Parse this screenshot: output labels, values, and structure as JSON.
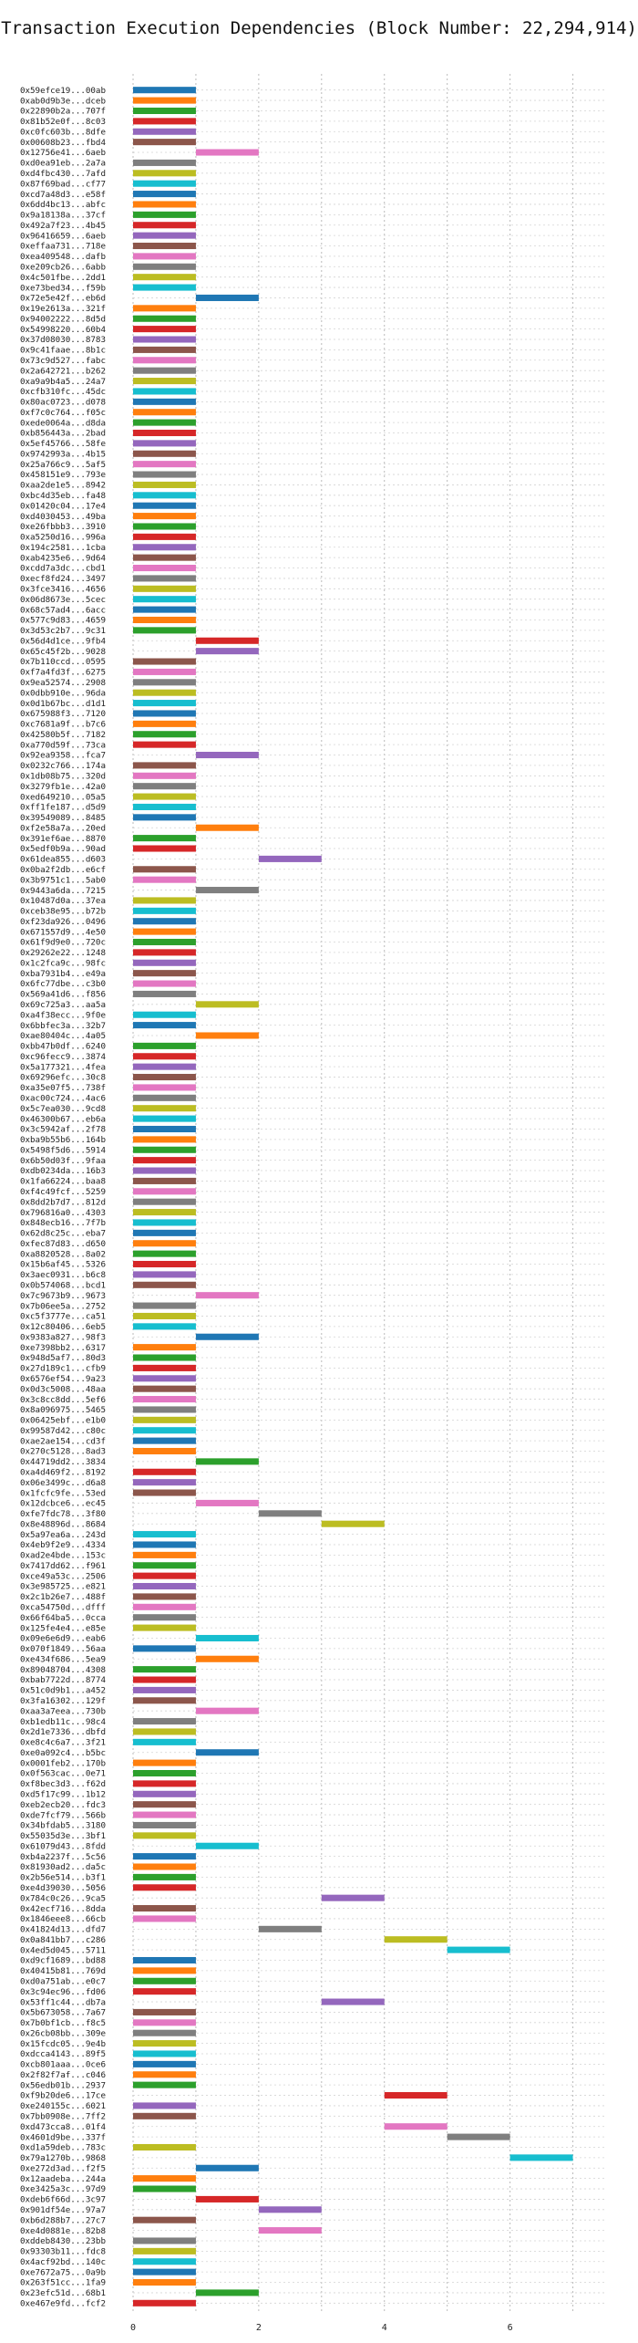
{
  "chart_data": {
    "type": "bar",
    "orientation": "horizontal-gantt",
    "title": "Transaction Execution Dependencies (Block Number: 22,294,914)",
    "xlabel": "",
    "ylabel": "",
    "xlim": [
      0,
      7.5
    ],
    "xticks": [
      0,
      2,
      4,
      6
    ],
    "grid": "vertical dotted",
    "legend": "none",
    "colors": [
      "#1f77b4",
      "#ff7f0e",
      "#2ca02c",
      "#d62728",
      "#9467bd",
      "#8c564b",
      "#e377c2",
      "#7f7f7f",
      "#bcbd22",
      "#17becf"
    ],
    "transactions": [
      {
        "tx": "0x59efce19...00ab",
        "start": 0,
        "end": 1
      },
      {
        "tx": "0xab0d9b3e...dceb",
        "start": 0,
        "end": 1
      },
      {
        "tx": "0x22890b2a...707f",
        "start": 0,
        "end": 1
      },
      {
        "tx": "0x81b52e0f...8c03",
        "start": 0,
        "end": 1
      },
      {
        "tx": "0xc0fc603b...8dfe",
        "start": 0,
        "end": 1
      },
      {
        "tx": "0x00608b23...fbd4",
        "start": 0,
        "end": 1
      },
      {
        "tx": "0x12756e41...6aeb",
        "start": 1,
        "end": 2
      },
      {
        "tx": "0xd0ea91eb...2a7a",
        "start": 0,
        "end": 1
      },
      {
        "tx": "0xd4fbc430...7afd",
        "start": 0,
        "end": 1
      },
      {
        "tx": "0x87f69bad...cf77",
        "start": 0,
        "end": 1
      },
      {
        "tx": "0xcd7a48d3...e58f",
        "start": 0,
        "end": 1
      },
      {
        "tx": "0x6dd4bc13...abfc",
        "start": 0,
        "end": 1
      },
      {
        "tx": "0x9a18138a...37cf",
        "start": 0,
        "end": 1
      },
      {
        "tx": "0x492a7f23...4b45",
        "start": 0,
        "end": 1
      },
      {
        "tx": "0x96416659...6aeb",
        "start": 0,
        "end": 1
      },
      {
        "tx": "0xeffaa731...718e",
        "start": 0,
        "end": 1
      },
      {
        "tx": "0xea409548...dafb",
        "start": 0,
        "end": 1
      },
      {
        "tx": "0xe209cb26...6abb",
        "start": 0,
        "end": 1
      },
      {
        "tx": "0x4c501fbe...2dd1",
        "start": 0,
        "end": 1
      },
      {
        "tx": "0xe73bed34...f59b",
        "start": 0,
        "end": 1
      },
      {
        "tx": "0x72e5e42f...eb6d",
        "start": 1,
        "end": 2
      },
      {
        "tx": "0x19e2613a...321f",
        "start": 0,
        "end": 1
      },
      {
        "tx": "0x94002222...8d5d",
        "start": 0,
        "end": 1
      },
      {
        "tx": "0x54998220...60b4",
        "start": 0,
        "end": 1
      },
      {
        "tx": "0x37d08030...8783",
        "start": 0,
        "end": 1
      },
      {
        "tx": "0x9c41faae...8b1c",
        "start": 0,
        "end": 1
      },
      {
        "tx": "0x73c9d527...fabc",
        "start": 0,
        "end": 1
      },
      {
        "tx": "0x2a642721...b262",
        "start": 0,
        "end": 1
      },
      {
        "tx": "0xa9a9b4a5...24a7",
        "start": 0,
        "end": 1
      },
      {
        "tx": "0xcfb310fc...45dc",
        "start": 0,
        "end": 1
      },
      {
        "tx": "0x80ac0723...d078",
        "start": 0,
        "end": 1
      },
      {
        "tx": "0xf7c0c764...f05c",
        "start": 0,
        "end": 1
      },
      {
        "tx": "0xede0064a...d8da",
        "start": 0,
        "end": 1
      },
      {
        "tx": "0xb856443a...2bad",
        "start": 0,
        "end": 1
      },
      {
        "tx": "0x5ef45766...58fe",
        "start": 0,
        "end": 1
      },
      {
        "tx": "0x9742993a...4b15",
        "start": 0,
        "end": 1
      },
      {
        "tx": "0x25a766c9...5af5",
        "start": 0,
        "end": 1
      },
      {
        "tx": "0x458151e9...793e",
        "start": 0,
        "end": 1
      },
      {
        "tx": "0xaa2de1e5...8942",
        "start": 0,
        "end": 1
      },
      {
        "tx": "0xbc4d35eb...fa48",
        "start": 0,
        "end": 1
      },
      {
        "tx": "0x01420c04...17e4",
        "start": 0,
        "end": 1
      },
      {
        "tx": "0xd4030453...49ba",
        "start": 0,
        "end": 1
      },
      {
        "tx": "0xe26fbbb3...3910",
        "start": 0,
        "end": 1
      },
      {
        "tx": "0xa5250d16...996a",
        "start": 0,
        "end": 1
      },
      {
        "tx": "0x194c2581...1cba",
        "start": 0,
        "end": 1
      },
      {
        "tx": "0xab4235e6...9d64",
        "start": 0,
        "end": 1
      },
      {
        "tx": "0xcdd7a3dc...cbd1",
        "start": 0,
        "end": 1
      },
      {
        "tx": "0xecf8fd24...3497",
        "start": 0,
        "end": 1
      },
      {
        "tx": "0x3fce3416...4656",
        "start": 0,
        "end": 1
      },
      {
        "tx": "0x06d8673e...5cec",
        "start": 0,
        "end": 1
      },
      {
        "tx": "0x68c57ad4...6acc",
        "start": 0,
        "end": 1
      },
      {
        "tx": "0x577c9d83...4659",
        "start": 0,
        "end": 1
      },
      {
        "tx": "0x3d53c2b7...9c31",
        "start": 0,
        "end": 1
      },
      {
        "tx": "0x56d4d1ce...9fb4",
        "start": 1,
        "end": 2
      },
      {
        "tx": "0x65c45f2b...9028",
        "start": 1,
        "end": 2
      },
      {
        "tx": "0x7b110ccd...0595",
        "start": 0,
        "end": 1
      },
      {
        "tx": "0xf7a4fd3f...6275",
        "start": 0,
        "end": 1
      },
      {
        "tx": "0x9ea52574...2908",
        "start": 0,
        "end": 1
      },
      {
        "tx": "0x0dbb910e...96da",
        "start": 0,
        "end": 1
      },
      {
        "tx": "0x0d1b67bc...d1d1",
        "start": 0,
        "end": 1
      },
      {
        "tx": "0x675988f3...7120",
        "start": 0,
        "end": 1
      },
      {
        "tx": "0xc7681a9f...b7c6",
        "start": 0,
        "end": 1
      },
      {
        "tx": "0x42580b5f...7182",
        "start": 0,
        "end": 1
      },
      {
        "tx": "0xa770d59f...73ca",
        "start": 0,
        "end": 1
      },
      {
        "tx": "0x92ea9358...fca7",
        "start": 1,
        "end": 2
      },
      {
        "tx": "0x0232c766...174a",
        "start": 0,
        "end": 1
      },
      {
        "tx": "0x1db08b75...320d",
        "start": 0,
        "end": 1
      },
      {
        "tx": "0x3279fb1e...42a0",
        "start": 0,
        "end": 1
      },
      {
        "tx": "0xed649210...05a5",
        "start": 0,
        "end": 1
      },
      {
        "tx": "0xff1fe187...d5d9",
        "start": 0,
        "end": 1
      },
      {
        "tx": "0x39549089...8485",
        "start": 0,
        "end": 1
      },
      {
        "tx": "0xf2e58a7a...20ed",
        "start": 1,
        "end": 2
      },
      {
        "tx": "0x391ef6ae...8870",
        "start": 0,
        "end": 1
      },
      {
        "tx": "0x5edf0b9a...90ad",
        "start": 0,
        "end": 1
      },
      {
        "tx": "0x61dea855...d603",
        "start": 2,
        "end": 3
      },
      {
        "tx": "0x0ba2f2db...e6cf",
        "start": 0,
        "end": 1
      },
      {
        "tx": "0x3b9751c1...5ab0",
        "start": 0,
        "end": 1
      },
      {
        "tx": "0x9443a6da...7215",
        "start": 1,
        "end": 2
      },
      {
        "tx": "0x10487d0a...37ea",
        "start": 0,
        "end": 1
      },
      {
        "tx": "0xceb38e95...b72b",
        "start": 0,
        "end": 1
      },
      {
        "tx": "0xf23da926...0496",
        "start": 0,
        "end": 1
      },
      {
        "tx": "0x671557d9...4e50",
        "start": 0,
        "end": 1
      },
      {
        "tx": "0x61f9d9e0...720c",
        "start": 0,
        "end": 1
      },
      {
        "tx": "0x29262e22...1248",
        "start": 0,
        "end": 1
      },
      {
        "tx": "0x1c2fca9c...98fc",
        "start": 0,
        "end": 1
      },
      {
        "tx": "0xba7931b4...e49a",
        "start": 0,
        "end": 1
      },
      {
        "tx": "0x6fc77dbe...c3b0",
        "start": 0,
        "end": 1
      },
      {
        "tx": "0x569a41d6...f856",
        "start": 0,
        "end": 1
      },
      {
        "tx": "0x69c725a3...aa5a",
        "start": 1,
        "end": 2
      },
      {
        "tx": "0xa4f38ecc...9f0e",
        "start": 0,
        "end": 1
      },
      {
        "tx": "0x6bbfec3a...32b7",
        "start": 0,
        "end": 1
      },
      {
        "tx": "0xae80404c...4a05",
        "start": 1,
        "end": 2
      },
      {
        "tx": "0xbb47b0df...6240",
        "start": 0,
        "end": 1
      },
      {
        "tx": "0xc96fecc9...3874",
        "start": 0,
        "end": 1
      },
      {
        "tx": "0x5a177321...4fea",
        "start": 0,
        "end": 1
      },
      {
        "tx": "0x69296efc...30c8",
        "start": 0,
        "end": 1
      },
      {
        "tx": "0xa35e07f5...738f",
        "start": 0,
        "end": 1
      },
      {
        "tx": "0xac00c724...4ac6",
        "start": 0,
        "end": 1
      },
      {
        "tx": "0x5c7ea030...9cd8",
        "start": 0,
        "end": 1
      },
      {
        "tx": "0x46300b67...eb6a",
        "start": 0,
        "end": 1
      },
      {
        "tx": "0x3c5942af...2f78",
        "start": 0,
        "end": 1
      },
      {
        "tx": "0xba9b55b6...164b",
        "start": 0,
        "end": 1
      },
      {
        "tx": "0x5498f5d6...5914",
        "start": 0,
        "end": 1
      },
      {
        "tx": "0x6b50d03f...9faa",
        "start": 0,
        "end": 1
      },
      {
        "tx": "0xdb0234da...16b3",
        "start": 0,
        "end": 1
      },
      {
        "tx": "0x1fa66224...baa8",
        "start": 0,
        "end": 1
      },
      {
        "tx": "0xf4c49fcf...5259",
        "start": 0,
        "end": 1
      },
      {
        "tx": "0x8dd2b7d7...812d",
        "start": 0,
        "end": 1
      },
      {
        "tx": "0x796816a0...4303",
        "start": 0,
        "end": 1
      },
      {
        "tx": "0x848ecb16...7f7b",
        "start": 0,
        "end": 1
      },
      {
        "tx": "0x62d8c25c...eba7",
        "start": 0,
        "end": 1
      },
      {
        "tx": "0xfec87d83...d650",
        "start": 0,
        "end": 1
      },
      {
        "tx": "0xa8820528...8a02",
        "start": 0,
        "end": 1
      },
      {
        "tx": "0x15b6af45...5326",
        "start": 0,
        "end": 1
      },
      {
        "tx": "0x3aec0931...b6c8",
        "start": 0,
        "end": 1
      },
      {
        "tx": "0x0b574068...bcd1",
        "start": 0,
        "end": 1
      },
      {
        "tx": "0x7c9673b9...9673",
        "start": 1,
        "end": 2
      },
      {
        "tx": "0x7b06ee5a...2752",
        "start": 0,
        "end": 1
      },
      {
        "tx": "0xc5f3777e...ca51",
        "start": 0,
        "end": 1
      },
      {
        "tx": "0x12c80406...6eb5",
        "start": 0,
        "end": 1
      },
      {
        "tx": "0x9383a827...98f3",
        "start": 1,
        "end": 2
      },
      {
        "tx": "0xe7398bb2...6317",
        "start": 0,
        "end": 1
      },
      {
        "tx": "0x948d5af7...80d3",
        "start": 0,
        "end": 1
      },
      {
        "tx": "0x27d189c1...cfb9",
        "start": 0,
        "end": 1
      },
      {
        "tx": "0x6576ef54...9a23",
        "start": 0,
        "end": 1
      },
      {
        "tx": "0x0d3c5008...48aa",
        "start": 0,
        "end": 1
      },
      {
        "tx": "0x3c8cc8dd...5ef6",
        "start": 0,
        "end": 1
      },
      {
        "tx": "0x8a096975...5465",
        "start": 0,
        "end": 1
      },
      {
        "tx": "0x06425ebf...e1b0",
        "start": 0,
        "end": 1
      },
      {
        "tx": "0x99587d42...c80c",
        "start": 0,
        "end": 1
      },
      {
        "tx": "0xae2ae154...cd3f",
        "start": 0,
        "end": 1
      },
      {
        "tx": "0x270c5128...8ad3",
        "start": 0,
        "end": 1
      },
      {
        "tx": "0x44719dd2...3834",
        "start": 1,
        "end": 2
      },
      {
        "tx": "0xa4d469f2...8192",
        "start": 0,
        "end": 1
      },
      {
        "tx": "0x06e3499c...d6a8",
        "start": 0,
        "end": 1
      },
      {
        "tx": "0x1fcfc9fe...53ed",
        "start": 0,
        "end": 1
      },
      {
        "tx": "0x12dcbce6...ec45",
        "start": 1,
        "end": 2
      },
      {
        "tx": "0xfe7fdc78...3f80",
        "start": 2,
        "end": 3
      },
      {
        "tx": "0x8e48896d...8684",
        "start": 3,
        "end": 4
      },
      {
        "tx": "0x5a97ea6a...243d",
        "start": 0,
        "end": 1
      },
      {
        "tx": "0x4eb9f2e9...4334",
        "start": 0,
        "end": 1
      },
      {
        "tx": "0xad2e4bde...153c",
        "start": 0,
        "end": 1
      },
      {
        "tx": "0x7417dd62...f961",
        "start": 0,
        "end": 1
      },
      {
        "tx": "0xce49a53c...2506",
        "start": 0,
        "end": 1
      },
      {
        "tx": "0x3e985725...e821",
        "start": 0,
        "end": 1
      },
      {
        "tx": "0x2c1b26e7...488f",
        "start": 0,
        "end": 1
      },
      {
        "tx": "0xca54750d...dfff",
        "start": 0,
        "end": 1
      },
      {
        "tx": "0x66f64ba5...0cca",
        "start": 0,
        "end": 1
      },
      {
        "tx": "0x125fe4e4...e85e",
        "start": 0,
        "end": 1
      },
      {
        "tx": "0x09e6e6d9...eab6",
        "start": 1,
        "end": 2
      },
      {
        "tx": "0x070f1849...56aa",
        "start": 0,
        "end": 1
      },
      {
        "tx": "0xe434f686...5ea9",
        "start": 1,
        "end": 2
      },
      {
        "tx": "0x89048704...4308",
        "start": 0,
        "end": 1
      },
      {
        "tx": "0xbab7722d...8774",
        "start": 0,
        "end": 1
      },
      {
        "tx": "0x51c0d9b1...a452",
        "start": 0,
        "end": 1
      },
      {
        "tx": "0x3fa16302...129f",
        "start": 0,
        "end": 1
      },
      {
        "tx": "0xaa3a7eea...730b",
        "start": 1,
        "end": 2
      },
      {
        "tx": "0xb1edb11c...98c4",
        "start": 0,
        "end": 1
      },
      {
        "tx": "0x2d1e7336...dbfd",
        "start": 0,
        "end": 1
      },
      {
        "tx": "0xe8c4c6a7...3f21",
        "start": 0,
        "end": 1
      },
      {
        "tx": "0xe0a092c4...b5bc",
        "start": 1,
        "end": 2
      },
      {
        "tx": "0x0001feb2...170b",
        "start": 0,
        "end": 1
      },
      {
        "tx": "0x0f563cac...0e71",
        "start": 0,
        "end": 1
      },
      {
        "tx": "0xf8bec3d3...f62d",
        "start": 0,
        "end": 1
      },
      {
        "tx": "0xd5f17c99...1b12",
        "start": 0,
        "end": 1
      },
      {
        "tx": "0xeb2ecb20...fdc3",
        "start": 0,
        "end": 1
      },
      {
        "tx": "0xde7fcf79...566b",
        "start": 0,
        "end": 1
      },
      {
        "tx": "0x34bfdab5...3180",
        "start": 0,
        "end": 1
      },
      {
        "tx": "0x55035d3e...3bf1",
        "start": 0,
        "end": 1
      },
      {
        "tx": "0x61079d43...8fdd",
        "start": 1,
        "end": 2
      },
      {
        "tx": "0xb4a2237f...5c56",
        "start": 0,
        "end": 1
      },
      {
        "tx": "0x81930ad2...da5c",
        "start": 0,
        "end": 1
      },
      {
        "tx": "0x2b56e514...b3f1",
        "start": 0,
        "end": 1
      },
      {
        "tx": "0xe4d39030...5056",
        "start": 0,
        "end": 1
      },
      {
        "tx": "0x784c0c26...9ca5",
        "start": 3,
        "end": 4
      },
      {
        "tx": "0x42ecf716...8dda",
        "start": 0,
        "end": 1
      },
      {
        "tx": "0x1846eee8...66cb",
        "start": 0,
        "end": 1
      },
      {
        "tx": "0x41824d13...dfd7",
        "start": 2,
        "end": 3
      },
      {
        "tx": "0x0a841bb7...c286",
        "start": 4,
        "end": 5
      },
      {
        "tx": "0x4ed5d045...5711",
        "start": 5,
        "end": 6
      },
      {
        "tx": "0xd9cf1689...bd88",
        "start": 0,
        "end": 1
      },
      {
        "tx": "0x40415b81...769d",
        "start": 0,
        "end": 1
      },
      {
        "tx": "0xd0a751ab...e0c7",
        "start": 0,
        "end": 1
      },
      {
        "tx": "0x3c94ec96...fd06",
        "start": 0,
        "end": 1
      },
      {
        "tx": "0x53ff1c44...db7a",
        "start": 3,
        "end": 4
      },
      {
        "tx": "0x5b673058...7a67",
        "start": 0,
        "end": 1
      },
      {
        "tx": "0x7b0bf1cb...f8c5",
        "start": 0,
        "end": 1
      },
      {
        "tx": "0x26cb08bb...309e",
        "start": 0,
        "end": 1
      },
      {
        "tx": "0x15fcdc05...9e4b",
        "start": 0,
        "end": 1
      },
      {
        "tx": "0xdcca4143...89f5",
        "start": 0,
        "end": 1
      },
      {
        "tx": "0xcb801aaa...0ce6",
        "start": 0,
        "end": 1
      },
      {
        "tx": "0x2f82f7af...c046",
        "start": 0,
        "end": 1
      },
      {
        "tx": "0x56edb01b...2937",
        "start": 0,
        "end": 1
      },
      {
        "tx": "0xf9b20de6...17ce",
        "start": 4,
        "end": 5
      },
      {
        "tx": "0xe240155c...6021",
        "start": 0,
        "end": 1
      },
      {
        "tx": "0x7bb0908e...7ff2",
        "start": 0,
        "end": 1
      },
      {
        "tx": "0xd473cca8...01f4",
        "start": 4,
        "end": 5
      },
      {
        "tx": "0x4601d9be...337f",
        "start": 5,
        "end": 6
      },
      {
        "tx": "0xd1a59deb...783c",
        "start": 0,
        "end": 1
      },
      {
        "tx": "0x79a1270b...9868",
        "start": 6,
        "end": 7
      },
      {
        "tx": "0xe272d3ad...f2f5",
        "start": 1,
        "end": 2
      },
      {
        "tx": "0x12aadeba...244a",
        "start": 0,
        "end": 1
      },
      {
        "tx": "0xe3425a3c...97d9",
        "start": 0,
        "end": 1
      },
      {
        "tx": "0xdeb6f66d...3c97",
        "start": 1,
        "end": 2
      },
      {
        "tx": "0x901df54e...97a7",
        "start": 2,
        "end": 3
      },
      {
        "tx": "0xb6d288b7...27c7",
        "start": 0,
        "end": 1
      },
      {
        "tx": "0xe4d0881e...82b8",
        "start": 2,
        "end": 3
      },
      {
        "tx": "0xddeb8430...23bb",
        "start": 0,
        "end": 1
      },
      {
        "tx": "0x93303b11...fdc8",
        "start": 0,
        "end": 1
      },
      {
        "tx": "0x4acf92bd...140c",
        "start": 0,
        "end": 1
      },
      {
        "tx": "0xe7672a75...0a9b",
        "start": 0,
        "end": 1
      },
      {
        "tx": "0x263f51cc...1fa9",
        "start": 0,
        "end": 1
      },
      {
        "tx": "0x23efc51d...68b1",
        "start": 1,
        "end": 2
      },
      {
        "tx": "0xe467e9fd...fcf2",
        "start": 0,
        "end": 1
      }
    ]
  }
}
